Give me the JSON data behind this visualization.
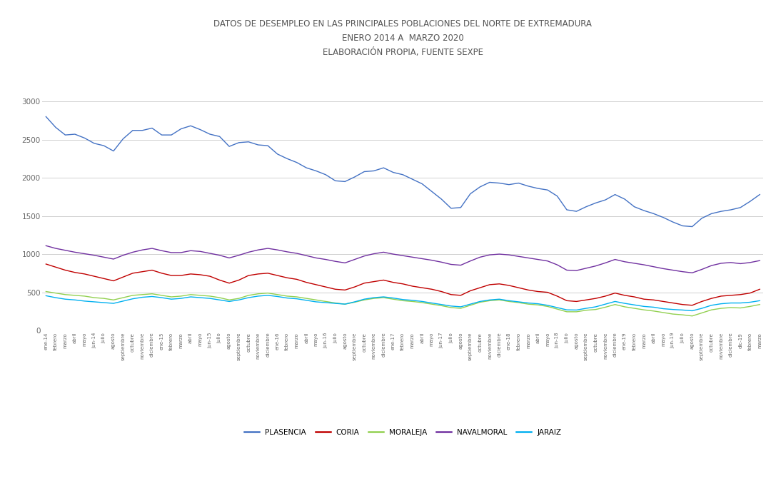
{
  "title_line1": "DATOS DE DESEMPLEO EN LAS PRINCIPALES POBLACIONES DEL NORTE DE EXTREMADURA",
  "title_line2": "ENERO 2014 A  MARZO 2020",
  "title_line3": "ELABORACIÓN PROPIA, FUENTE SEXPE",
  "title_fontsize": 8.5,
  "background_color": "#ffffff",
  "grid_color": "#d0d0d0",
  "ylim": [
    0,
    3500
  ],
  "yticks": [
    0,
    500,
    1000,
    1500,
    2000,
    2500,
    3000
  ],
  "ytick_labels": [
    "0",
    "500",
    "1000",
    "1500",
    "2000",
    "2500",
    "3000"
  ],
  "legend_labels": [
    "PLASENCIA",
    "CORIA",
    "MORALEJA",
    "NAVALMORAL",
    "JARAIZ"
  ],
  "line_colors": {
    "PLASENCIA": "#4472c4",
    "CORIA": "#c00000",
    "MORALEJA": "#92d050",
    "NAVALMORAL": "#7030a0",
    "JARAIZ": "#00b0f0"
  },
  "months": [
    "ene-14",
    "febrero",
    "marzo",
    "abril",
    "mayo",
    "jun-14",
    "julio",
    "agosto",
    "septiembre",
    "octubre",
    "noviembre",
    "diciembre",
    "ene-15",
    "febrero",
    "marzo",
    "abril",
    "mayo",
    "jun-15",
    "julio",
    "agosto",
    "septiembre",
    "octubre",
    "noviembre",
    "diciembre",
    "ene-16",
    "febrero",
    "marzo",
    "abril",
    "mayo",
    "jun-16",
    "julio",
    "agosto",
    "septiembre",
    "octubre",
    "noviembre",
    "diciembre",
    "ene-17",
    "febrero",
    "marzo",
    "abril",
    "mayo",
    "jun-17",
    "julio",
    "agosto",
    "septiembre",
    "octubre",
    "noviembre",
    "diciembre",
    "ene-18",
    "febrero",
    "marzo",
    "abril",
    "mayo",
    "jun-18",
    "julio",
    "agosto",
    "septiembre",
    "octubre",
    "noviembre",
    "diciembre",
    "ene-19",
    "febrero",
    "marzo",
    "abril",
    "mayo",
    "jun-19",
    "julio",
    "agosto",
    "septiembre",
    "octubre",
    "noviembre",
    "diciembre",
    "dic-19",
    "febrero",
    "marzo"
  ],
  "PLASENCIA": [
    2800,
    2660,
    2560,
    2570,
    2520,
    2450,
    2420,
    2350,
    2510,
    2620,
    2620,
    2650,
    2560,
    2560,
    2640,
    2680,
    2630,
    2570,
    2540,
    2410,
    2460,
    2470,
    2430,
    2420,
    2310,
    2250,
    2200,
    2130,
    2090,
    2040,
    1960,
    1950,
    2010,
    2080,
    2090,
    2130,
    2070,
    2040,
    1980,
    1920,
    1820,
    1720,
    1600,
    1610,
    1790,
    1880,
    1940,
    1930,
    1910,
    1930,
    1890,
    1860,
    1840,
    1760,
    1580,
    1560,
    1620,
    1670,
    1710,
    1780,
    1720,
    1620,
    1570,
    1530,
    1480,
    1420,
    1370,
    1360,
    1470,
    1530,
    1560,
    1580,
    1610,
    1690,
    1780
  ],
  "CORIA": [
    870,
    830,
    790,
    760,
    740,
    710,
    680,
    650,
    700,
    750,
    770,
    790,
    750,
    720,
    720,
    740,
    730,
    710,
    660,
    620,
    660,
    720,
    740,
    750,
    720,
    690,
    670,
    630,
    600,
    570,
    540,
    530,
    570,
    620,
    640,
    660,
    630,
    610,
    580,
    560,
    540,
    510,
    470,
    460,
    520,
    560,
    600,
    610,
    590,
    560,
    530,
    510,
    500,
    450,
    390,
    380,
    400,
    420,
    450,
    490,
    460,
    440,
    410,
    400,
    380,
    360,
    340,
    330,
    380,
    420,
    450,
    460,
    470,
    490,
    540
  ],
  "MORALEJA": [
    510,
    490,
    470,
    460,
    450,
    430,
    420,
    400,
    430,
    460,
    470,
    480,
    460,
    440,
    450,
    470,
    460,
    450,
    430,
    400,
    420,
    460,
    480,
    490,
    470,
    450,
    440,
    420,
    400,
    380,
    360,
    345,
    370,
    400,
    420,
    430,
    410,
    390,
    380,
    365,
    345,
    325,
    300,
    290,
    330,
    370,
    390,
    400,
    380,
    365,
    345,
    335,
    315,
    280,
    245,
    245,
    265,
    275,
    305,
    340,
    310,
    290,
    270,
    255,
    235,
    215,
    205,
    190,
    230,
    270,
    290,
    300,
    295,
    315,
    340
  ],
  "NAVALMORAL": [
    1110,
    1075,
    1050,
    1025,
    1005,
    985,
    960,
    935,
    985,
    1025,
    1055,
    1075,
    1045,
    1020,
    1020,
    1045,
    1035,
    1010,
    985,
    950,
    985,
    1025,
    1055,
    1075,
    1055,
    1030,
    1010,
    980,
    950,
    930,
    905,
    885,
    930,
    975,
    1005,
    1025,
    1000,
    980,
    960,
    940,
    920,
    895,
    865,
    855,
    910,
    960,
    990,
    1000,
    990,
    970,
    950,
    930,
    910,
    860,
    790,
    785,
    815,
    845,
    885,
    930,
    900,
    880,
    860,
    835,
    810,
    790,
    770,
    755,
    800,
    850,
    880,
    890,
    875,
    890,
    915
  ],
  "JARAIZ": [
    455,
    430,
    410,
    400,
    385,
    375,
    365,
    355,
    385,
    415,
    435,
    445,
    430,
    410,
    420,
    440,
    430,
    420,
    400,
    380,
    400,
    430,
    450,
    460,
    445,
    425,
    415,
    395,
    375,
    365,
    355,
    345,
    375,
    410,
    430,
    440,
    425,
    405,
    395,
    380,
    360,
    340,
    320,
    310,
    345,
    380,
    400,
    410,
    390,
    375,
    360,
    350,
    330,
    300,
    270,
    268,
    290,
    310,
    345,
    380,
    355,
    335,
    315,
    305,
    285,
    275,
    268,
    258,
    290,
    330,
    350,
    360,
    360,
    370,
    390
  ]
}
